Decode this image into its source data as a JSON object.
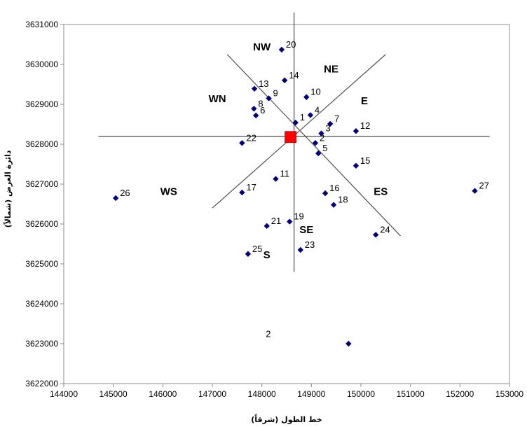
{
  "chart_data": {
    "type": "scatter",
    "xlabel": "خط الطول (شرقاً)",
    "ylabel": "دائرة العرض (شمالاً)",
    "xlim": [
      144000,
      153000
    ],
    "ylim": [
      3622000,
      3631000
    ],
    "x_ticks": [
      "144000",
      "145000",
      "146000",
      "147000",
      "148000",
      "149000",
      "150000",
      "151000",
      "152000",
      "153000"
    ],
    "y_ticks": [
      "3622000",
      "3623000",
      "3624000",
      "3625000",
      "3626000",
      "3627000",
      "3628000",
      "3629000",
      "3630000",
      "3631000"
    ],
    "grid": false,
    "legend": "none",
    "marker_color": "#00007f",
    "center_marker_color": "#ff0000",
    "center": {
      "x": 148580,
      "y": 3628180
    },
    "points": [
      {
        "label": "1",
        "x": 148680,
        "y": 3628540
      },
      {
        "label": "2",
        "x": 149080,
        "y": 3628030
      },
      {
        "label": "3",
        "x": 149200,
        "y": 3628270
      },
      {
        "label": "4",
        "x": 148980,
        "y": 3628730
      },
      {
        "label": "5",
        "x": 149140,
        "y": 3627770
      },
      {
        "label": "6",
        "x": 147880,
        "y": 3628720
      },
      {
        "label": "7",
        "x": 149380,
        "y": 3628510
      },
      {
        "label": "8",
        "x": 147840,
        "y": 3628890
      },
      {
        "label": "9",
        "x": 148140,
        "y": 3629150
      },
      {
        "label": "10",
        "x": 148900,
        "y": 3629180
      },
      {
        "label": "11",
        "x": 148280,
        "y": 3627130
      },
      {
        "label": "12",
        "x": 149900,
        "y": 3628330
      },
      {
        "label": "13",
        "x": 147850,
        "y": 3629390
      },
      {
        "label": "14",
        "x": 148460,
        "y": 3629600
      },
      {
        "label": "15",
        "x": 149900,
        "y": 3627460
      },
      {
        "label": "16",
        "x": 149280,
        "y": 3626770
      },
      {
        "label": "17",
        "x": 147600,
        "y": 3626790
      },
      {
        "label": "18",
        "x": 149450,
        "y": 3626480
      },
      {
        "label": "19",
        "x": 148560,
        "y": 3626060
      },
      {
        "label": "20",
        "x": 148400,
        "y": 3630370
      },
      {
        "label": "21",
        "x": 148100,
        "y": 3625950
      },
      {
        "label": "22",
        "x": 147600,
        "y": 3628030
      },
      {
        "label": "23",
        "x": 148780,
        "y": 3625350
      },
      {
        "label": "24",
        "x": 150300,
        "y": 3625730
      },
      {
        "label": "25",
        "x": 147720,
        "y": 3625250
      },
      {
        "label": "26",
        "x": 145050,
        "y": 3626650
      },
      {
        "label": "27",
        "x": 152300,
        "y": 3626830
      },
      {
        "label": "",
        "x": 149750,
        "y": 3623000
      }
    ],
    "annotations": [
      {
        "text": "NW",
        "x": 148000,
        "y": 3630350
      },
      {
        "text": "NE",
        "x": 149400,
        "y": 3629800
      },
      {
        "text": "WN",
        "x": 147100,
        "y": 3629050
      },
      {
        "text": "E",
        "x": 150070,
        "y": 3629000
      },
      {
        "text": "WS",
        "x": 146120,
        "y": 3626730
      },
      {
        "text": "ES",
        "x": 150400,
        "y": 3626730
      },
      {
        "text": "SE",
        "x": 148900,
        "y": 3625770
      },
      {
        "text": "S",
        "x": 148100,
        "y": 3625140
      },
      {
        "text": "2",
        "x": 148130,
        "y": 3623170
      }
    ],
    "reference_lines": [
      {
        "x1": 144700,
        "y1": 3628200,
        "x2": 152600,
        "y2": 3628200
      },
      {
        "x1": 148650,
        "y1": 3631300,
        "x2": 148650,
        "y2": 3624800
      },
      {
        "x1": 147300,
        "y1": 3630250,
        "x2": 150800,
        "y2": 3625700
      },
      {
        "x1": 147000,
        "y1": 3626400,
        "x2": 150500,
        "y2": 3630250
      }
    ]
  }
}
